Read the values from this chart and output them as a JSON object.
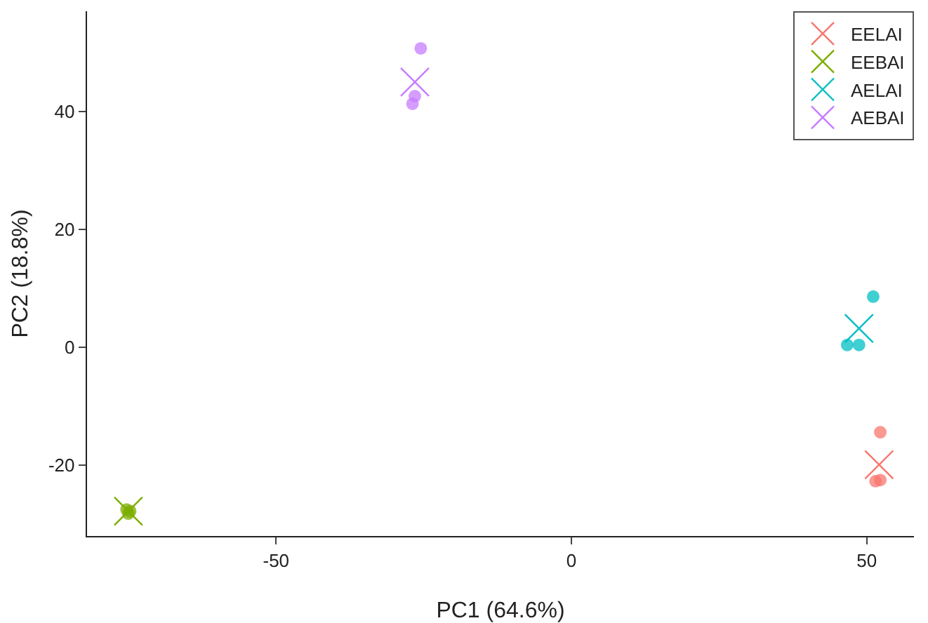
{
  "chart_data": {
    "type": "scatter",
    "xlabel": "PC1 (64.6%)",
    "ylabel": "PC2 (18.8%)",
    "xlim": [
      -82,
      58
    ],
    "xticks": [
      -50,
      0,
      50
    ],
    "ylim": [
      -32,
      57
    ],
    "yticks": [
      -20,
      0,
      20,
      40
    ],
    "grid": false,
    "legend": "top right",
    "series": [
      {
        "name": "EELAI",
        "color": "#f8766d",
        "marker": "cross",
        "x": [
          52.1
        ],
        "values": [
          -19.9
        ]
      },
      {
        "name": "EEBAI",
        "color": "#7cae00",
        "marker": "cross",
        "x": [
          -75.0
        ],
        "values": [
          -27.8
        ]
      },
      {
        "name": "AELAI",
        "color": "#00bfc4",
        "marker": "cross",
        "x": [
          48.7
        ],
        "values": [
          3.2
        ]
      },
      {
        "name": "AEBAI",
        "color": "#c77cff",
        "marker": "cross",
        "x": [
          -26.5
        ],
        "values": [
          45.0
        ]
      },
      {
        "color": "#f8766d",
        "marker": "circle",
        "x": [
          52.3,
          51.5,
          52.3
        ],
        "values": [
          -14.4,
          -22.7,
          -22.5
        ]
      },
      {
        "color": "#7cae00",
        "marker": "circle",
        "x": [
          -75.3,
          -74.7,
          -75.0
        ],
        "values": [
          -27.5,
          -27.8,
          -28.2
        ]
      },
      {
        "color": "#00bfc4",
        "marker": "circle",
        "x": [
          51.1,
          46.7,
          48.7
        ],
        "values": [
          8.6,
          0.4,
          0.4
        ]
      },
      {
        "color": "#c77cff",
        "marker": "circle",
        "x": [
          -25.5,
          -26.5,
          -26.9
        ],
        "values": [
          50.7,
          42.6,
          41.3
        ]
      }
    ]
  }
}
